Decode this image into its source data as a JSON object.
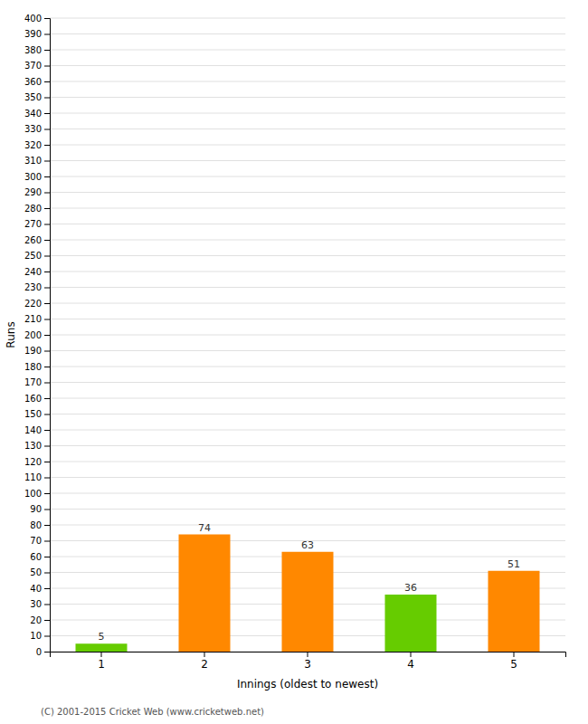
{
  "chart_data": {
    "type": "bar",
    "categories": [
      1,
      2,
      3,
      4,
      5
    ],
    "values": [
      5,
      74,
      63,
      36,
      51
    ],
    "colors": [
      "#66cc00",
      "#ff8800",
      "#ff8800",
      "#66cc00",
      "#ff8800"
    ],
    "data_labels": true,
    "xlabel": "Innings (oldest to newest)",
    "ylabel": "Runs",
    "ylim": [
      0,
      400
    ],
    "yticks": [
      0,
      10,
      20,
      30,
      40,
      50,
      60,
      70,
      80,
      90,
      100,
      110,
      120,
      130,
      140,
      150,
      160,
      170,
      180,
      190,
      200,
      210,
      220,
      230,
      240,
      250,
      260,
      270,
      280,
      290,
      300,
      310,
      320,
      330,
      340,
      350,
      360,
      370,
      380,
      390,
      400
    ],
    "grid": true,
    "footer": "(C) 2001-2015 Cricket Web (www.cricketweb.net)"
  }
}
